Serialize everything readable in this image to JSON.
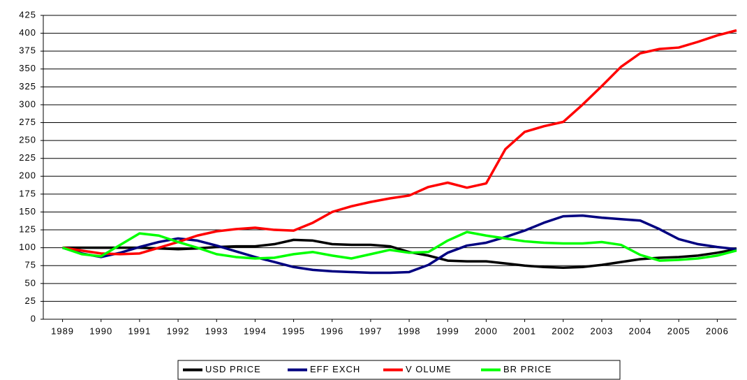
{
  "chart_data": {
    "type": "line",
    "x": [
      1989,
      1989.5,
      1990,
      1990.5,
      1991,
      1991.5,
      1992,
      1992.5,
      1993,
      1993.5,
      1994,
      1994.5,
      1995,
      1995.5,
      1996,
      1996.5,
      1997,
      1997.5,
      1998,
      1998.5,
      1999,
      1999.5,
      2000,
      2000.5,
      2001,
      2001.5,
      2002,
      2002.5,
      2003,
      2003.5,
      2004,
      2004.5,
      2005,
      2005.5,
      2006,
      2006.5
    ],
    "xlim": [
      1988.5,
      2006.5
    ],
    "xticks": [
      1989,
      1990,
      1991,
      1992,
      1993,
      1994,
      1995,
      1996,
      1997,
      1998,
      1999,
      2000,
      2001,
      2002,
      2003,
      2004,
      2005,
      2006
    ],
    "ylim": [
      0,
      425
    ],
    "yticks": [
      0,
      25,
      50,
      75,
      100,
      125,
      150,
      175,
      200,
      225,
      250,
      275,
      300,
      325,
      350,
      375,
      400,
      425
    ],
    "grid": true,
    "legend": "bottom",
    "series": [
      {
        "name": "USD PRICE",
        "color": "#000000",
        "values": [
          100,
          100,
          100,
          100,
          100,
          99,
          98,
          99,
          101,
          102,
          102,
          105,
          111,
          110,
          105,
          104,
          104,
          102,
          94,
          89,
          82,
          81,
          81,
          78,
          75,
          73,
          72,
          73,
          76,
          80,
          84,
          86,
          87,
          89,
          93,
          98
        ]
      },
      {
        "name": "EFF EXCH",
        "color": "#000080",
        "values": [
          100,
          92,
          87,
          93,
          101,
          108,
          113,
          110,
          103,
          95,
          87,
          80,
          73,
          69,
          67,
          66,
          65,
          65,
          66,
          76,
          93,
          103,
          107,
          115,
          124,
          135,
          144,
          145,
          142,
          140,
          138,
          126,
          112,
          105,
          101,
          98
        ]
      },
      {
        "name": "V OLUME",
        "color": "#ff0000",
        "values": [
          100,
          96,
          92,
          91,
          92,
          100,
          108,
          117,
          123,
          126,
          128,
          125,
          124,
          135,
          150,
          158,
          164,
          169,
          173,
          185,
          191,
          184,
          190,
          238,
          262,
          270,
          276,
          300,
          326,
          353,
          372,
          378,
          380,
          388,
          397,
          404
        ]
      },
      {
        "name": "BR PRICE",
        "color": "#00ff00",
        "values": [
          100,
          91,
          88,
          104,
          120,
          117,
          108,
          100,
          91,
          87,
          85,
          86,
          91,
          94,
          89,
          85,
          91,
          97,
          93,
          94,
          110,
          122,
          117,
          113,
          109,
          107,
          106,
          106,
          108,
          104,
          90,
          82,
          83,
          85,
          89,
          96
        ]
      }
    ]
  }
}
